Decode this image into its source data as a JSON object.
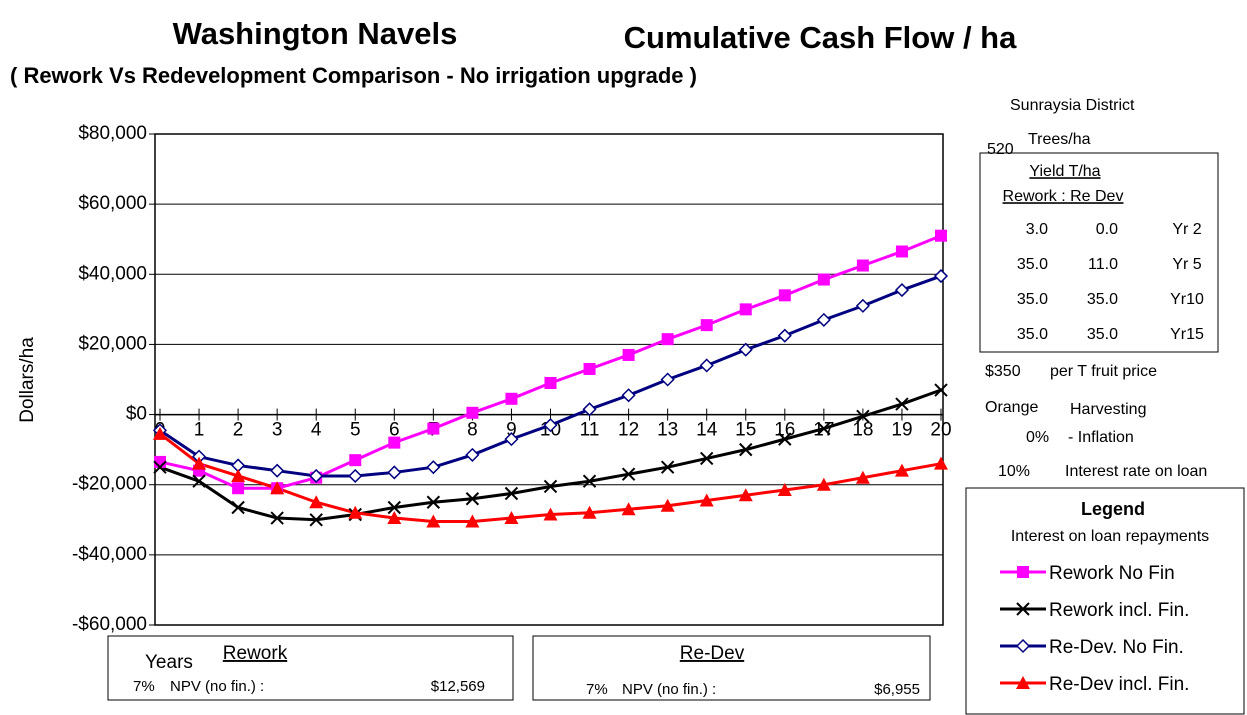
{
  "chart_data": {
    "type": "line",
    "title": "Washington Navels",
    "title2": "Cumulative Cash Flow / ha",
    "subtitle": "( Rework Vs Redevelopment Comparison - No irrigation upgrade )",
    "y_label": "Dollars/ha",
    "x_label": "Years",
    "x": [
      0,
      1,
      2,
      3,
      4,
      5,
      6,
      7,
      8,
      9,
      10,
      11,
      12,
      13,
      14,
      15,
      16,
      17,
      18,
      19,
      20
    ],
    "xlim": [
      0,
      20
    ],
    "xticks": [
      0,
      1,
      2,
      3,
      4,
      5,
      6,
      7,
      8,
      9,
      10,
      11,
      12,
      13,
      14,
      15,
      16,
      17,
      18,
      19,
      20
    ],
    "ylim": [
      -60000,
      80000
    ],
    "yticks": [
      {
        "value": -60000,
        "label": "-$60,000"
      },
      {
        "value": -40000,
        "label": "-$40,000"
      },
      {
        "value": -20000,
        "label": "-$20,000"
      },
      {
        "value": 0,
        "label": "$0"
      },
      {
        "value": 20000,
        "label": "$20,000"
      },
      {
        "value": 40000,
        "label": "$40,000"
      },
      {
        "value": 60000,
        "label": "$60,000"
      },
      {
        "value": 80000,
        "label": "$80,000"
      }
    ],
    "grid": true,
    "series": [
      {
        "name": "Rework No Fin",
        "color": "#ff00ff",
        "marker": "square",
        "values": [
          -13500,
          -16000,
          -21000,
          -21000,
          -18000,
          -13000,
          -8000,
          -4000,
          500,
          4500,
          9000,
          13000,
          17000,
          21500,
          25500,
          30000,
          34000,
          38500,
          42500,
          46500,
          51000
        ]
      },
      {
        "name": "Rework incl. Fin.",
        "color": "#000000",
        "marker": "x",
        "values": [
          -15000,
          -19000,
          -26500,
          -29500,
          -30000,
          -28500,
          -26500,
          -25000,
          -24000,
          -22500,
          -20500,
          -19000,
          -17000,
          -15000,
          -12500,
          -10000,
          -7000,
          -4000,
          -500,
          3000,
          7000
        ]
      },
      {
        "name": "Re-Dev. No Fin.",
        "color": "#000080",
        "marker": "diamond",
        "values": [
          -4500,
          -12000,
          -14500,
          -16000,
          -17500,
          -17500,
          -16500,
          -15000,
          -11500,
          -7000,
          -3000,
          1500,
          5500,
          10000,
          14000,
          18500,
          22500,
          27000,
          31000,
          35500,
          39500
        ]
      },
      {
        "name": "Re-Dev incl. Fin.",
        "color": "#ff0000",
        "marker": "triangle",
        "values": [
          -5500,
          -14000,
          -17500,
          -21000,
          -25000,
          -28000,
          -29500,
          -30500,
          -30500,
          -29500,
          -28500,
          -28000,
          -27000,
          -26000,
          -24500,
          -23000,
          -21500,
          -20000,
          -18000,
          -16000,
          -14000
        ]
      }
    ],
    "legend": {
      "title": "Legend",
      "subtitle": "Interest on loan repayments"
    }
  },
  "side_panel": {
    "district": "Sunraysia District",
    "trees": "520",
    "trees_label": "Trees/ha",
    "yield_title": "Yield T/ha",
    "yield_header": "Rework : Re Dev",
    "yield_rows": [
      [
        "3.0",
        "0.0",
        "Yr 2"
      ],
      [
        "35.0",
        "11.0",
        "Yr 5"
      ],
      [
        "35.0",
        "35.0",
        "Yr10"
      ],
      [
        "35.0",
        "35.0",
        "Yr15"
      ]
    ],
    "price": "$350",
    "price_label": "per T fruit price",
    "harvest": "Orange",
    "harvest_label": "Harvesting",
    "inflation": "0%",
    "inflation_label": "- Inflation",
    "interest": "10%",
    "interest_label": "Interest rate on loan"
  },
  "npv_boxes": [
    {
      "title": "Rework",
      "rate": "7%",
      "label": "NPV (no fin.) :",
      "value": "$12,569"
    },
    {
      "title": "Re-Dev",
      "rate": "7%",
      "label": "NPV (no fin.) :",
      "value": "$6,955"
    }
  ]
}
